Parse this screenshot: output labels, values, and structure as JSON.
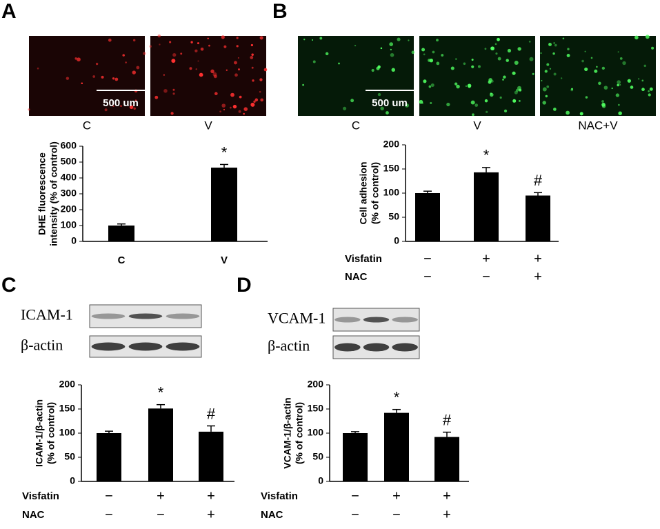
{
  "chart_data": [
    {
      "type": "bar",
      "panel": "A",
      "image_labels": [
        "C",
        "V"
      ],
      "scale_bar": "500 um",
      "ylabel": [
        "DHE fluorescence",
        "intensity (% of control)"
      ],
      "categories": [
        "C",
        "V"
      ],
      "values": [
        100,
        465
      ],
      "errors": [
        10,
        20
      ],
      "color": "#000000",
      "ylim": [
        0,
        600
      ],
      "yticks": [
        0,
        100,
        200,
        300,
        400,
        500,
        600
      ],
      "annotations": [
        null,
        "*"
      ]
    },
    {
      "type": "bar",
      "panel": "B",
      "image_labels": [
        "C",
        "V",
        "NAC+V"
      ],
      "scale_bar": "500 um",
      "ylabel": [
        "Cell adhesion",
        "(% of control)"
      ],
      "values": [
        100,
        143,
        95
      ],
      "errors": [
        4,
        10,
        6
      ],
      "color": "#000000",
      "ylim": [
        0,
        200
      ],
      "yticks": [
        0,
        50,
        100,
        150,
        200
      ],
      "annotations": [
        null,
        "*",
        "#"
      ],
      "row_labels": [
        "Visfatin",
        "NAC"
      ],
      "treatments": [
        [
          "−",
          "+",
          "+"
        ],
        [
          "−",
          "−",
          "+"
        ]
      ]
    },
    {
      "type": "bar",
      "panel": "C",
      "blot_labels": [
        "ICAM-1",
        "β-actin"
      ],
      "ylabel": [
        "ICAM-1/β-actin",
        "(% of control)"
      ],
      "values": [
        100,
        151,
        103
      ],
      "errors": [
        4,
        8,
        12
      ],
      "color": "#000000",
      "ylim": [
        0,
        200
      ],
      "yticks": [
        0,
        50,
        100,
        150,
        200
      ],
      "annotations": [
        null,
        "*",
        "#"
      ],
      "row_labels": [
        "Visfatin",
        "NAC"
      ],
      "treatments": [
        [
          "−",
          "+",
          "+"
        ],
        [
          "−",
          "−",
          "+"
        ]
      ]
    },
    {
      "type": "bar",
      "panel": "D",
      "blot_labels": [
        "VCAM-1",
        "β-actin"
      ],
      "ylabel": [
        "VCAM-1/β-actin",
        "(% of control)"
      ],
      "values": [
        100,
        142,
        92
      ],
      "errors": [
        3,
        7,
        10
      ],
      "color": "#000000",
      "ylim": [
        0,
        200
      ],
      "yticks": [
        0,
        50,
        100,
        150,
        200
      ],
      "annotations": [
        null,
        "*",
        "#"
      ],
      "row_labels": [
        "Visfatin",
        "NAC"
      ],
      "treatments": [
        [
          "−",
          "+",
          "+"
        ],
        [
          "−",
          "−",
          "+"
        ]
      ]
    }
  ]
}
